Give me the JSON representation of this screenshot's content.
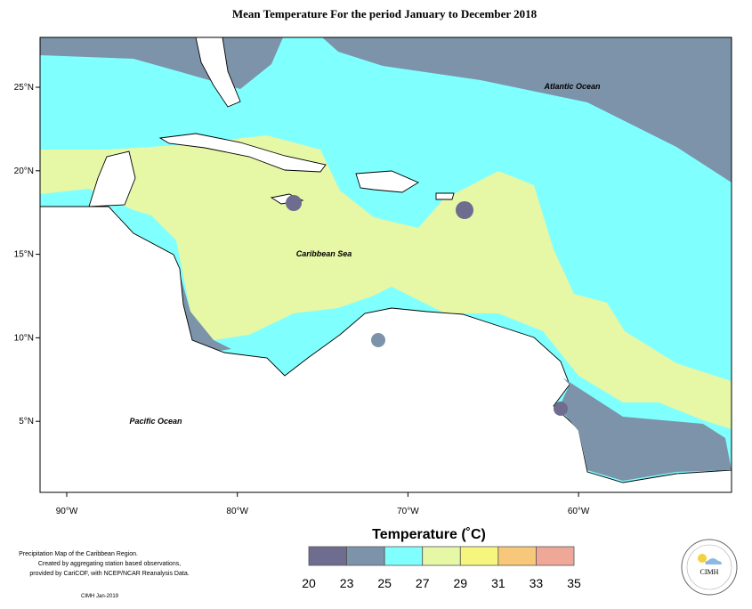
{
  "title": "Mean Temperature For the period January to December 2018",
  "ocean_labels": {
    "atlantic": "Atlantic Ocean",
    "caribbean": "Caribbean Sea",
    "pacific": "Pacific Ocean"
  },
  "lat_labels": [
    "25°N",
    "20°N",
    "15°N",
    "10°N",
    "5°N"
  ],
  "lon_labels": [
    "90°W",
    "80°W",
    "70°W",
    "60°W"
  ],
  "legend": {
    "title": "Temperature (˚C)",
    "ticks": [
      20,
      23,
      25,
      27,
      29,
      31,
      33,
      35
    ],
    "colors": [
      "#6e6c8f",
      "#7d93aa",
      "#80ffff",
      "#e6f7a6",
      "#f6f67e",
      "#f8c87a",
      "#efa797"
    ]
  },
  "notes": [
    "Precipitation Map of the Caribbean Region.",
    "Created by aggregating station based observations,",
    "provided by CariCOF, with NCEP/NCAR Reanalysis Data."
  ],
  "credit": "CIMH Jan-2019",
  "logo": "CIMH"
}
